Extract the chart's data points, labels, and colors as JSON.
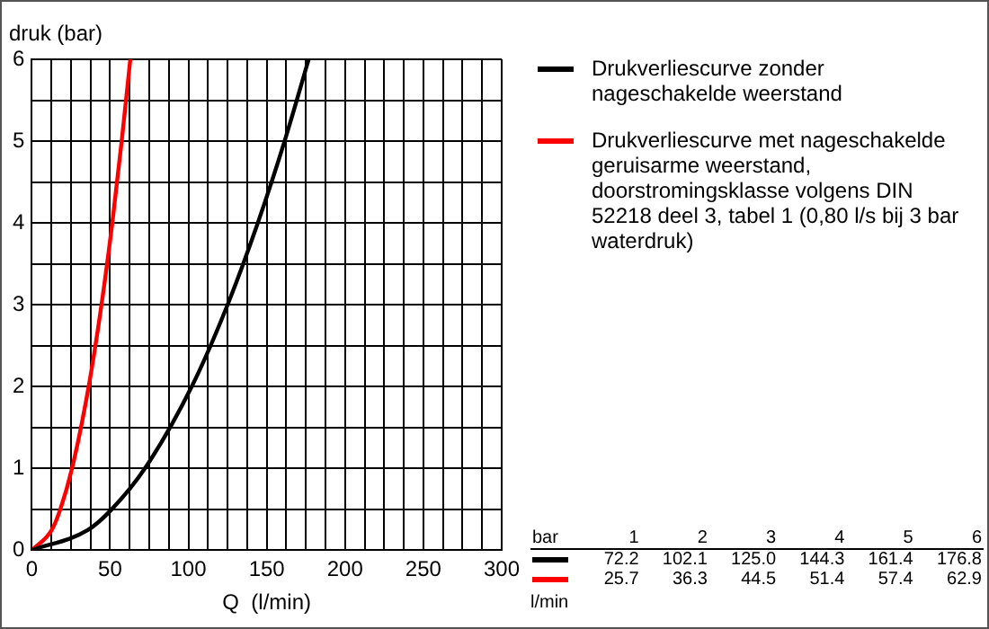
{
  "chart_data": {
    "type": "line",
    "xlabel": "Q  (l/min)",
    "ylabel": "druk (bar)",
    "xlim": [
      0,
      300
    ],
    "ylim": [
      0,
      6
    ],
    "xticks": [
      0,
      {
        "value": 12.5,
        "label": null
      },
      50,
      {
        "value": 25,
        "label": null
      },
      {
        "value": 37.5,
        "label": null
      },
      {
        "value": 62.5,
        "label": null
      },
      {
        "value": 75,
        "label": null
      },
      {
        "value": 87.5,
        "label": null
      },
      100,
      {
        "value": 112.5,
        "label": null
      },
      {
        "value": 125,
        "label": null
      },
      {
        "value": 137.5,
        "label": null
      },
      150,
      {
        "value": 162.5,
        "label": null
      },
      {
        "value": 175,
        "label": null
      },
      {
        "value": 187.5,
        "label": null
      },
      200,
      {
        "value": 212.5,
        "label": null
      },
      {
        "value": 225,
        "label": null
      },
      {
        "value": 237.5,
        "label": null
      },
      250,
      {
        "value": 262.5,
        "label": null
      },
      {
        "value": 275,
        "label": null
      },
      {
        "value": 287.5,
        "label": null
      },
      300
    ],
    "yticks": [
      0,
      {
        "value": 0.5,
        "label": null
      },
      1,
      {
        "value": 1.5,
        "label": null
      },
      2,
      {
        "value": 2.5,
        "label": null
      },
      3,
      {
        "value": 3.5,
        "label": null
      },
      4,
      {
        "value": 4.5,
        "label": null
      },
      5,
      {
        "value": 5.5,
        "label": null
      },
      6
    ],
    "grid": true,
    "legend": "right",
    "annotations": [
      "bar",
      "1",
      "2",
      "3",
      "4",
      "5",
      "6",
      "72.2",
      "102.1",
      "125.0",
      "144.3",
      "161.4",
      "176.8",
      "25.7",
      "36.3",
      "44.5",
      "51.4",
      "57.4",
      "62.9",
      "l/min"
    ],
    "series": [
      {
        "name": "Drukverliescurve zonder nageschakelde weerstand",
        "color": "#000000",
        "x": [
          0,
          36,
          51,
          72.2,
          102.1,
          125.0,
          144.3,
          161.4,
          176.8
        ],
        "values": [
          0,
          0.25,
          0.5,
          1,
          2,
          3,
          4,
          5,
          6
        ]
      },
      {
        "name": "Drukverliescurve met nageschakelde geruisarme weerstand, doorstromingsklasse volgens DIN 52218 deel 3, tabel 1 (0,80 l/s bij 3 bar waterdruk)",
        "color": "#ff0000",
        "x": [
          0,
          12.8,
          18.2,
          25.7,
          36.3,
          44.5,
          51.4,
          57.4,
          62.9
        ],
        "values": [
          0,
          0.25,
          0.5,
          1,
          2,
          3,
          4,
          5,
          6
        ]
      }
    ]
  }
}
